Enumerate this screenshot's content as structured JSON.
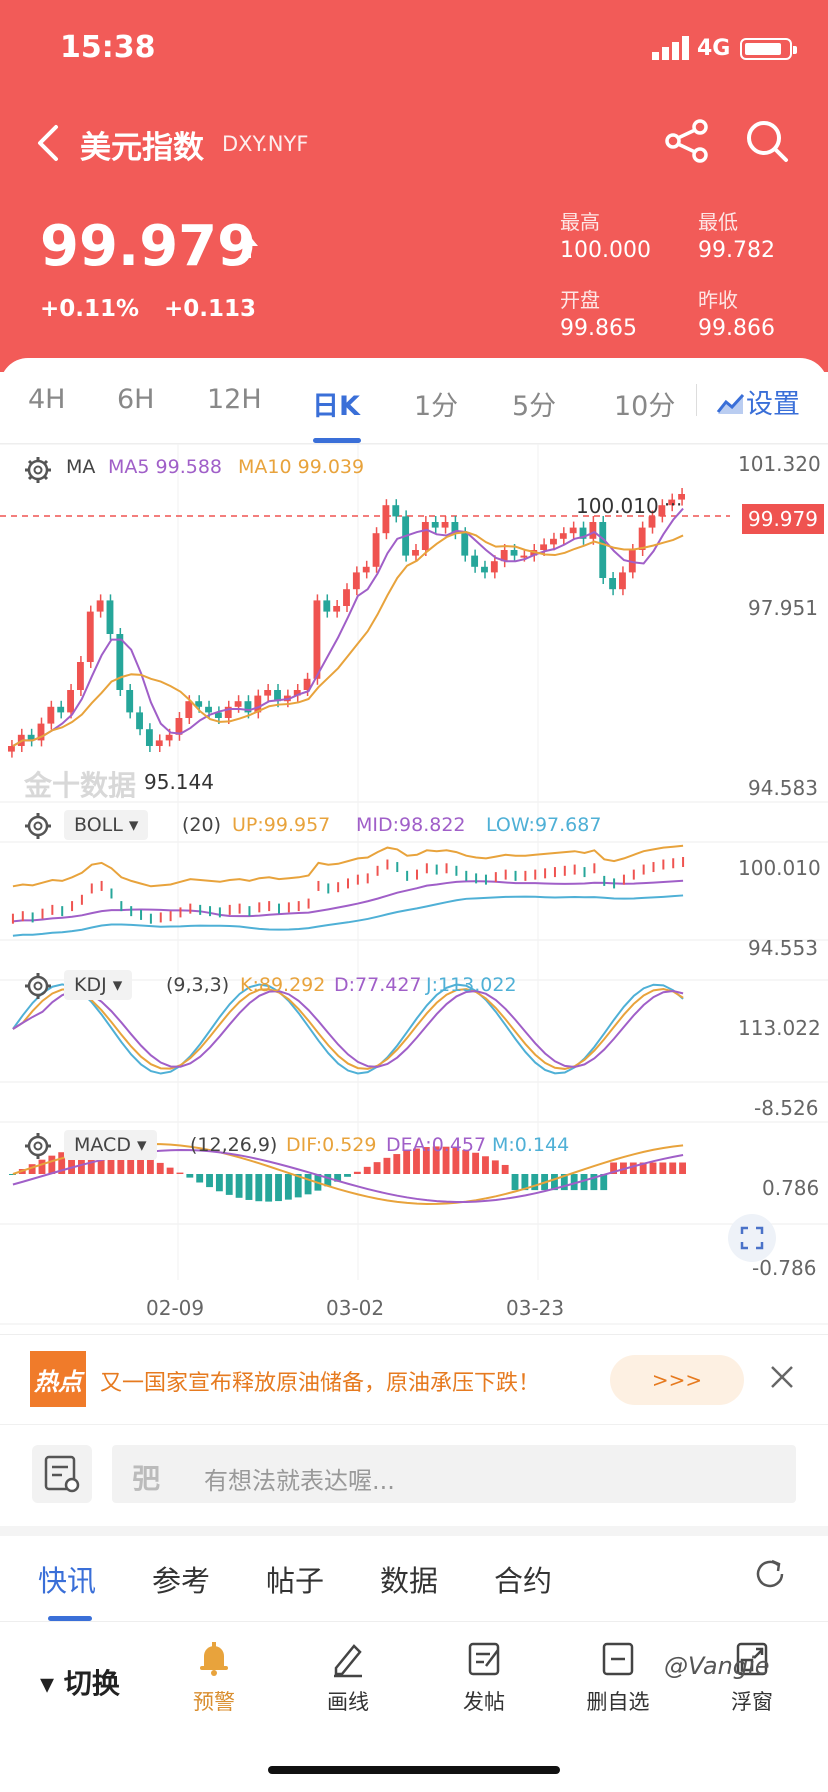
{
  "status": {
    "time": "15:38",
    "network": "4G"
  },
  "nav": {
    "title": "美元指数",
    "code": "DXY.NYF"
  },
  "quote": {
    "price": "99.979",
    "change_pct": "+0.11%",
    "change": "+0.113",
    "high_label": "最高",
    "high": "100.000",
    "low_label": "最低",
    "low": "99.782",
    "open_label": "开盘",
    "open": "99.865",
    "prev_label": "昨收",
    "prev": "99.866"
  },
  "tabs": [
    "4H",
    "6H",
    "12H",
    "日K",
    "1分",
    "5分",
    "10分"
  ],
  "settings_label": "设置",
  "panels": {
    "main": {
      "indicator": "MA",
      "ma5": "MA5 99.588",
      "ma10": "MA10 99.039",
      "y_top": "101.320",
      "y_mid": "97.951",
      "y_bottom": "94.583",
      "peak_label": "100.010",
      "current_price": "99.979",
      "low_label": "95.144"
    },
    "boll": {
      "name": "BOLL",
      "params": "(20)",
      "up": "UP:99.957",
      "mid": "MID:98.822",
      "low": "LOW:97.687",
      "y_top": "100.010",
      "y_bottom": "94.553"
    },
    "kdj": {
      "name": "KDJ",
      "params": "(9,3,3)",
      "k": "K:89.292",
      "d": "D:77.427",
      "j": "J:113.022",
      "y_top": "113.022",
      "y_bottom": "-8.526"
    },
    "macd": {
      "name": "MACD",
      "params": "(12,26,9)",
      "dif": "DIF:0.529",
      "dea": "DEA:0.457",
      "m": "M:0.144",
      "y_top": "0.786",
      "y_bottom": "-0.786"
    }
  },
  "x_labels": [
    "02-09",
    "03-02",
    "03-23"
  ],
  "news": {
    "badge": "热点",
    "text": "又一国家宣布释放原油储备，原油承压下跌！",
    "more": ">>>"
  },
  "comment": {
    "icon_text": "弝",
    "placeholder": "有想法就表达喔..."
  },
  "bottom_tabs": [
    "快讯",
    "参考",
    "帖子",
    "数据",
    "合约"
  ],
  "toolbar": {
    "switch": "切换",
    "warn": "预警",
    "draw": "画线",
    "post": "发帖",
    "remove": "删自选",
    "float": "浮窗"
  },
  "watermark": "@Vangie",
  "colors": {
    "header": "#f25b58",
    "accent": "#3a6fd8",
    "up": "#ef5350",
    "down": "#26a69a",
    "ma5": "#a05fc8",
    "ma10": "#e8a33c",
    "boll_low": "#4fb0d6"
  }
}
